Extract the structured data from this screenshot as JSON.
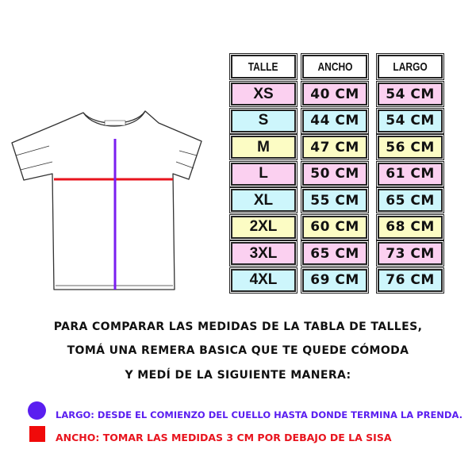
{
  "table": {
    "headers": [
      "TALLE",
      "ANCHO",
      "LARGO"
    ],
    "rows": [
      {
        "talle": "XS",
        "ancho": "40 CM",
        "largo": "54 CM",
        "color": "#fbd0f0"
      },
      {
        "talle": "S",
        "ancho": "44 CM",
        "largo": "54 CM",
        "color": "#cdf6fc"
      },
      {
        "talle": "M",
        "ancho": "47 CM",
        "largo": "56 CM",
        "color": "#fcfcc4"
      },
      {
        "talle": "L",
        "ancho": "50 CM",
        "largo": "61 CM",
        "color": "#fbd0f0"
      },
      {
        "talle": "XL",
        "ancho": "55 CM",
        "largo": "65 CM",
        "color": "#cdf6fc"
      },
      {
        "talle": "2XL",
        "ancho": "60 CM",
        "largo": "68 CM",
        "color": "#fcfcc4"
      },
      {
        "talle": "3XL",
        "ancho": "65 CM",
        "largo": "73 CM",
        "color": "#fbd0f0"
      },
      {
        "talle": "4XL",
        "ancho": "69 CM",
        "largo": "76 CM",
        "color": "#cdf6fc"
      }
    ]
  },
  "instructions": [
    "PARA COMPARAR LAS MEDIDAS DE LA TABLA DE TALLES,",
    "TOMÁ UNA REMERA BASICA QUE TE QUEDE CÓMODA",
    "Y MEDÍ DE LA SIGUIENTE MANERA:"
  ],
  "legend": [
    {
      "text": "LARGO: DESDE EL COMIENZO DEL CUELLO HASTA DONDE TERMINA LA PRENDA.",
      "color": "#5a1ef0",
      "icon": "circle-icon"
    },
    {
      "text": "ANCHO: TOMAR LAS MEDIDAS 3 CM POR DEBAJO DE LA SISA",
      "color": "#f00a0a",
      "icon": "square-icon"
    }
  ]
}
